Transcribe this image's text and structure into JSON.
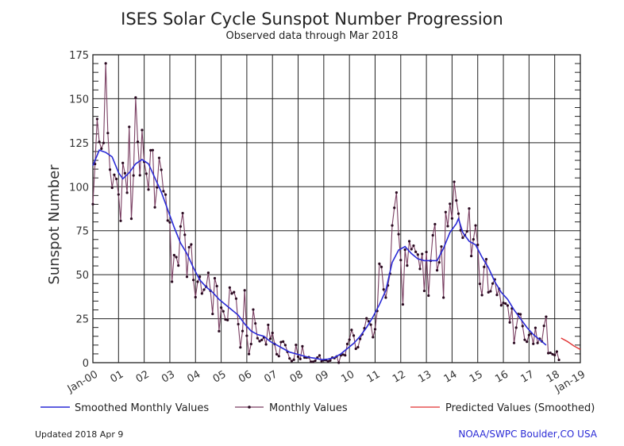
{
  "chart_data": {
    "type": "line",
    "title": "ISES Solar Cycle Sunspot Number Progression",
    "subtitle": "Observed data through Mar 2018",
    "ylabel": "Sunspot Number",
    "xlabel": "",
    "ylim": [
      0,
      175
    ],
    "xlim": [
      "2000-01",
      "2019-01"
    ],
    "grid": true,
    "legend_placement": "bottom",
    "y_ticks": [
      "0",
      "25",
      "50",
      "75",
      "100",
      "125",
      "150",
      "175"
    ],
    "x_ticks": [
      "Jan-00",
      "01",
      "02",
      "03",
      "04",
      "05",
      "06",
      "07",
      "08",
      "09",
      "10",
      "11",
      "12",
      "13",
      "14",
      "15",
      "16",
      "17",
      "18",
      "Jan-19"
    ],
    "colors": {
      "smoothed": "#2a2ad6",
      "monthly_line": "#7a3f62",
      "monthly_marker": "#2a0a20",
      "predicted": "#e03030",
      "credit": "#2a2ad6"
    },
    "series": [
      {
        "name": "Smoothed Monthly Values",
        "points": [
          [
            "2000-01",
            112
          ],
          [
            "2000-04",
            120.8
          ],
          [
            "2000-07",
            119.5
          ],
          [
            "2000-10",
            117
          ],
          [
            "2001-01",
            108
          ],
          [
            "2001-03",
            104.5
          ],
          [
            "2001-06",
            108
          ],
          [
            "2001-09",
            113
          ],
          [
            "2001-12",
            115.5
          ],
          [
            "2002-03",
            113
          ],
          [
            "2002-06",
            105
          ],
          [
            "2002-09",
            97
          ],
          [
            "2002-12",
            87
          ],
          [
            "2003-03",
            77
          ],
          [
            "2003-06",
            68
          ],
          [
            "2003-09",
            62
          ],
          [
            "2003-12",
            54
          ],
          [
            "2004-03",
            47
          ],
          [
            "2004-06",
            43
          ],
          [
            "2004-09",
            40
          ],
          [
            "2004-12",
            36
          ],
          [
            "2005-03",
            33
          ],
          [
            "2005-06",
            30
          ],
          [
            "2005-09",
            27
          ],
          [
            "2005-12",
            22
          ],
          [
            "2006-03",
            18
          ],
          [
            "2006-06",
            16
          ],
          [
            "2006-09",
            15
          ],
          [
            "2006-12",
            12
          ],
          [
            "2007-03",
            10
          ],
          [
            "2007-06",
            8
          ],
          [
            "2007-09",
            6
          ],
          [
            "2007-12",
            5
          ],
          [
            "2008-03",
            4
          ],
          [
            "2008-06",
            3
          ],
          [
            "2008-09",
            2.5
          ],
          [
            "2008-12",
            1.7
          ],
          [
            "2009-03",
            2
          ],
          [
            "2009-06",
            3
          ],
          [
            "2009-09",
            5
          ],
          [
            "2009-12",
            8
          ],
          [
            "2010-03",
            11
          ],
          [
            "2010-06",
            15
          ],
          [
            "2010-09",
            20
          ],
          [
            "2010-12",
            26
          ],
          [
            "2011-03",
            33
          ],
          [
            "2011-06",
            41
          ],
          [
            "2011-09",
            57
          ],
          [
            "2011-12",
            64
          ],
          [
            "2012-03",
            66
          ],
          [
            "2012-06",
            62
          ],
          [
            "2012-09",
            59
          ],
          [
            "2012-12",
            58
          ],
          [
            "2013-03",
            58
          ],
          [
            "2013-06",
            58
          ],
          [
            "2013-09",
            65
          ],
          [
            "2013-12",
            74
          ],
          [
            "2014-03",
            79
          ],
          [
            "2014-04",
            81.9
          ],
          [
            "2014-06",
            74
          ],
          [
            "2014-09",
            69
          ],
          [
            "2014-12",
            67
          ],
          [
            "2015-03",
            60
          ],
          [
            "2015-06",
            54
          ],
          [
            "2015-09",
            46
          ],
          [
            "2015-12",
            40
          ],
          [
            "2016-03",
            36
          ],
          [
            "2016-06",
            30
          ],
          [
            "2016-09",
            25
          ],
          [
            "2016-12",
            20
          ],
          [
            "2017-03",
            16
          ],
          [
            "2017-06",
            13
          ],
          [
            "2017-09",
            10
          ]
        ]
      },
      {
        "name": "Monthly Values",
        "start": "2000-01",
        "values": [
          90.1,
          112.9,
          138.5,
          125.5,
          121.6,
          124.9,
          170.1,
          130.5,
          109.7,
          99.4,
          106.8,
          104.4,
          95.6,
          80.6,
          113.5,
          107.7,
          96.6,
          134.0,
          81.8,
          106.4,
          150.7,
          125.5,
          106.5,
          132.2,
          114.1,
          107.4,
          98.4,
          120.7,
          120.8,
          88.3,
          99.6,
          116.4,
          109.6,
          97.5,
          95.5,
          80.8,
          79.7,
          46.0,
          61.1,
          60.0,
          55.2,
          77.4,
          85.0,
          72.7,
          48.8,
          65.6,
          67.2,
          47.0,
          37.2,
          46.0,
          48.9,
          39.3,
          41.5,
          43.2,
          51.1,
          40.9,
          27.7,
          48.0,
          43.5,
          17.9,
          31.3,
          29.2,
          24.5,
          24.2,
          42.7,
          39.3,
          40.1,
          36.4,
          21.9,
          8.7,
          18.0,
          41.1,
          15.3,
          4.9,
          10.6,
          30.2,
          22.3,
          13.9,
          12.2,
          12.9,
          14.4,
          10.4,
          21.5,
          13.6,
          16.9,
          10.6,
          4.8,
          3.7,
          11.7,
          12.0,
          10.0,
          6.2,
          2.4,
          0.9,
          1.7,
          10.1,
          3.4,
          2.1,
          9.3,
          2.9,
          2.9,
          3.1,
          0.5,
          0.5,
          1.1,
          2.9,
          4.1,
          0.8,
          1.5,
          1.4,
          0.7,
          1.2,
          2.9,
          2.6,
          3.5,
          0.0,
          4.2,
          4.6,
          4.2,
          10.6,
          13.1,
          18.6,
          15.4,
          7.9,
          8.8,
          13.5,
          16.1,
          19.6,
          25.2,
          23.5,
          21.6,
          14.5,
          19.0,
          29.4,
          56.2,
          54.4,
          41.6,
          37.0,
          43.9,
          50.6,
          78.0,
          88.0,
          96.7,
          73.0,
          58.3,
          33.1,
          64.2,
          55.2,
          69.0,
          64.5,
          66.5,
          63.0,
          61.4,
          53.3,
          61.8,
          40.8,
          62.9,
          38.1,
          57.9,
          72.4,
          78.7,
          52.5,
          57.0,
          66.0,
          37.0,
          85.6,
          77.6,
          90.3,
          82.0,
          102.8,
          92.2,
          84.7,
          75.2,
          71.0,
          72.4,
          74.6,
          87.6,
          60.6,
          70.1,
          78.0,
          67.0,
          44.8,
          38.4,
          54.4,
          58.8,
          40.0,
          40.6,
          45.0,
          47.3,
          38.5,
          42.0,
          32.6,
          34.0,
          33.6,
          32.5,
          22.9,
          30.8,
          11.2,
          19.9,
          27.7,
          27.5,
          20.8,
          13.0,
          11.9,
          15.7,
          16.7,
          10.7,
          19.8,
          11.2,
          13.6,
          12.1,
          20.9,
          26.1,
          5.4,
          5.6,
          4.8,
          4.3,
          6.3,
          1.6
        ]
      },
      {
        "name": "Predicted Values (Smoothed)",
        "points": [
          [
            "2018-04",
            14
          ],
          [
            "2018-07",
            12
          ],
          [
            "2018-10",
            9.5
          ],
          [
            "2019-01",
            7.5
          ]
        ]
      }
    ]
  },
  "footer": {
    "updated": "Updated 2018 Apr  9",
    "credit": "NOAA/SWPC Boulder,CO USA"
  }
}
